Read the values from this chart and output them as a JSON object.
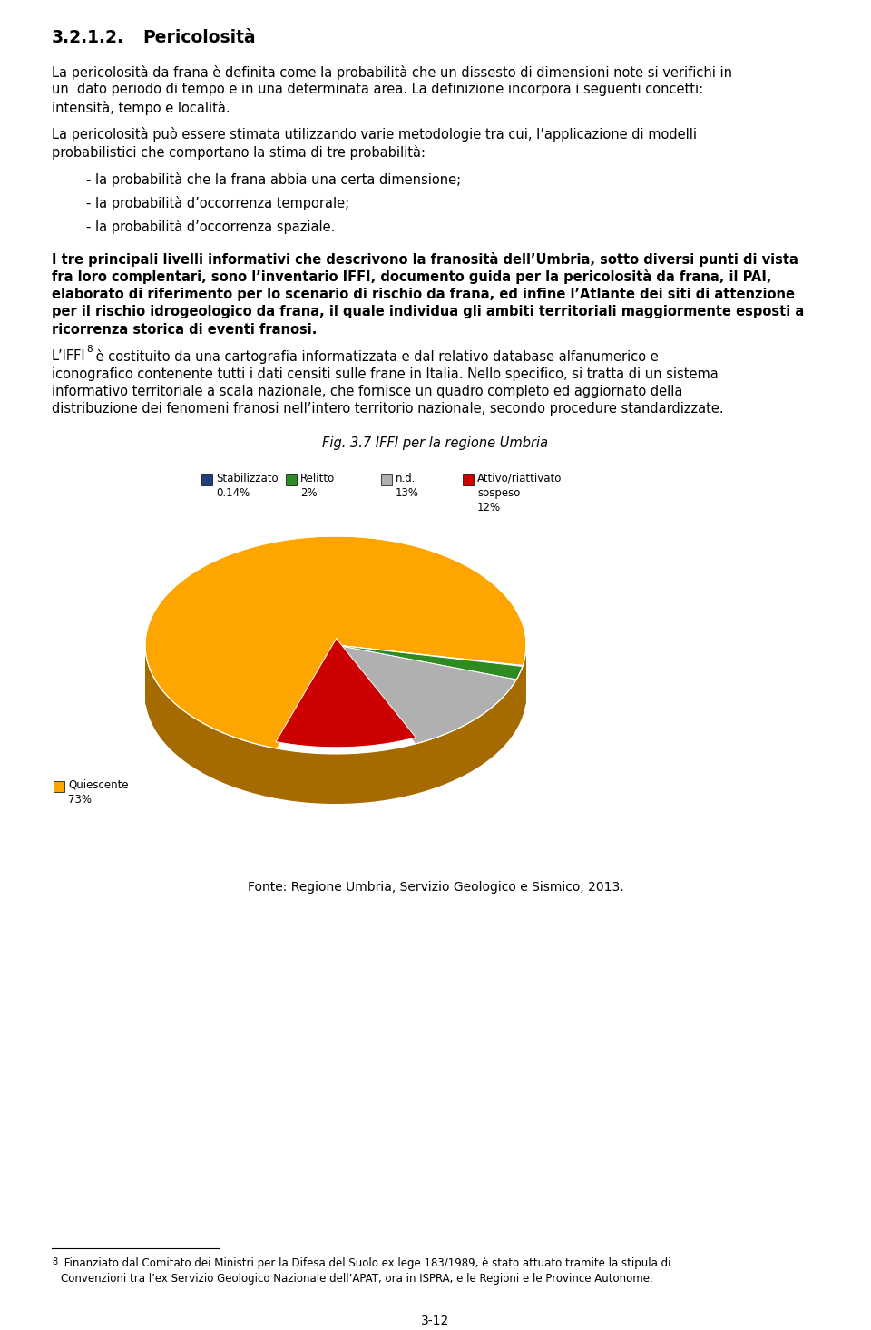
{
  "bg_color": "#FFFFFF",
  "page_number": "3-12",
  "pie_slices": [
    0.73,
    0.0014,
    0.02,
    0.13,
    0.12
  ],
  "pie_colors": [
    "#FFA500",
    "#1F3F7F",
    "#2E8B22",
    "#B0B0B0",
    "#CC0000"
  ],
  "pie_shadow_color": "#8B8B6B",
  "pie_shadow_dark": "#6B6B4B",
  "startangle": 108,
  "explode_idx": 4,
  "explode_amount": 0.06
}
